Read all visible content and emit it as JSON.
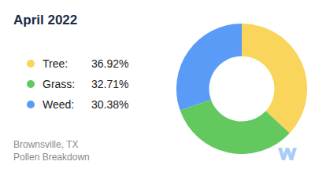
{
  "chart_data": {
    "type": "doughnut",
    "title": "April 2022",
    "categories": [
      "Tree:",
      "Grass:",
      "Weed:"
    ],
    "values": [
      36.92,
      32.71,
      30.38
    ],
    "value_labels": [
      "36.92%",
      "32.71%",
      "30.38%"
    ],
    "colors": [
      "#f9d55b",
      "#63c95f",
      "#5b9bf8"
    ],
    "legend": "left",
    "annotations": [
      "Brownsville, TX",
      "Pollen Breakdown"
    ]
  }
}
